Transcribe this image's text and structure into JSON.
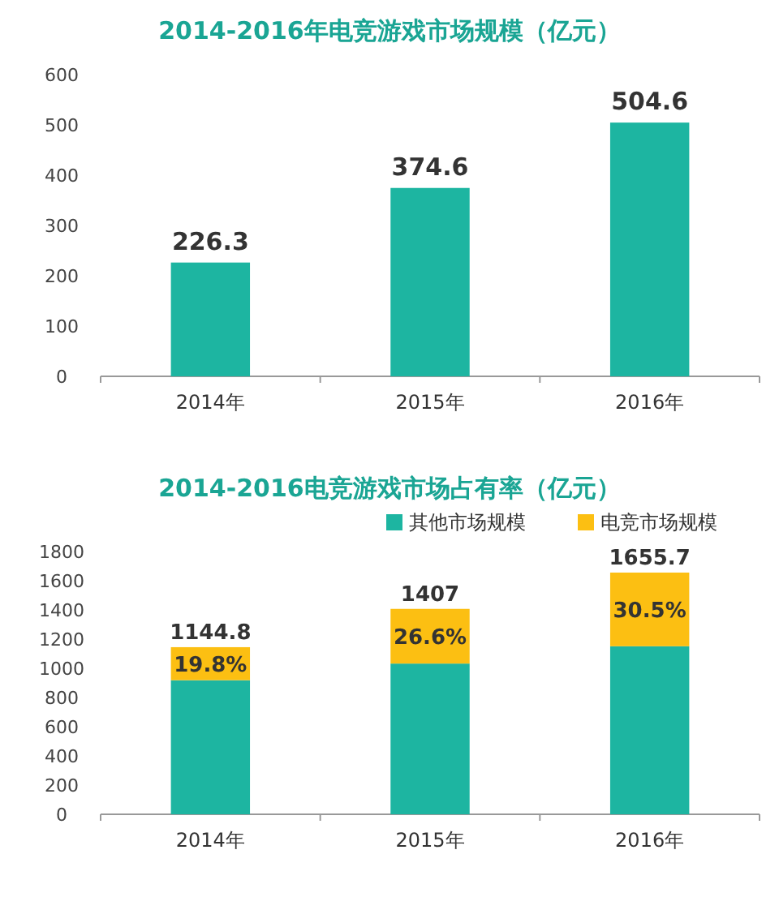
{
  "chart_data": [
    {
      "type": "bar",
      "title": "2014-2016年电竞游戏市场规模（亿元）",
      "categories": [
        "2014年",
        "2015年",
        "2016年"
      ],
      "values": [
        226.3,
        374.6,
        504.6
      ],
      "color": "#1db5a1",
      "ylim": [
        0,
        600
      ],
      "yticks": [
        0,
        100,
        200,
        300,
        400,
        500,
        600
      ],
      "data_labels": true
    },
    {
      "type": "bar",
      "title": "2014-2016电竞游戏市场占有率（亿元）",
      "categories": [
        "2014年",
        "2015年",
        "2016年"
      ],
      "stacked": true,
      "legend": "top right",
      "ylim": [
        0,
        1800
      ],
      "yticks": [
        0,
        200,
        400,
        600,
        800,
        1000,
        1200,
        1400,
        1600,
        1800
      ],
      "series": [
        {
          "name": "其他市场规模",
          "color": "#1db5a1",
          "values": [
            918.5,
            1032.4,
            1151.1
          ]
        },
        {
          "name": "电竞市场规模",
          "color": "#fcbf12",
          "values": [
            226.3,
            374.6,
            504.6
          ]
        }
      ],
      "annotations": [
        "19.8%",
        "26.6%",
        "30.5%"
      ],
      "totals": [
        "1144.8",
        "1407",
        "1655.7"
      ]
    }
  ]
}
